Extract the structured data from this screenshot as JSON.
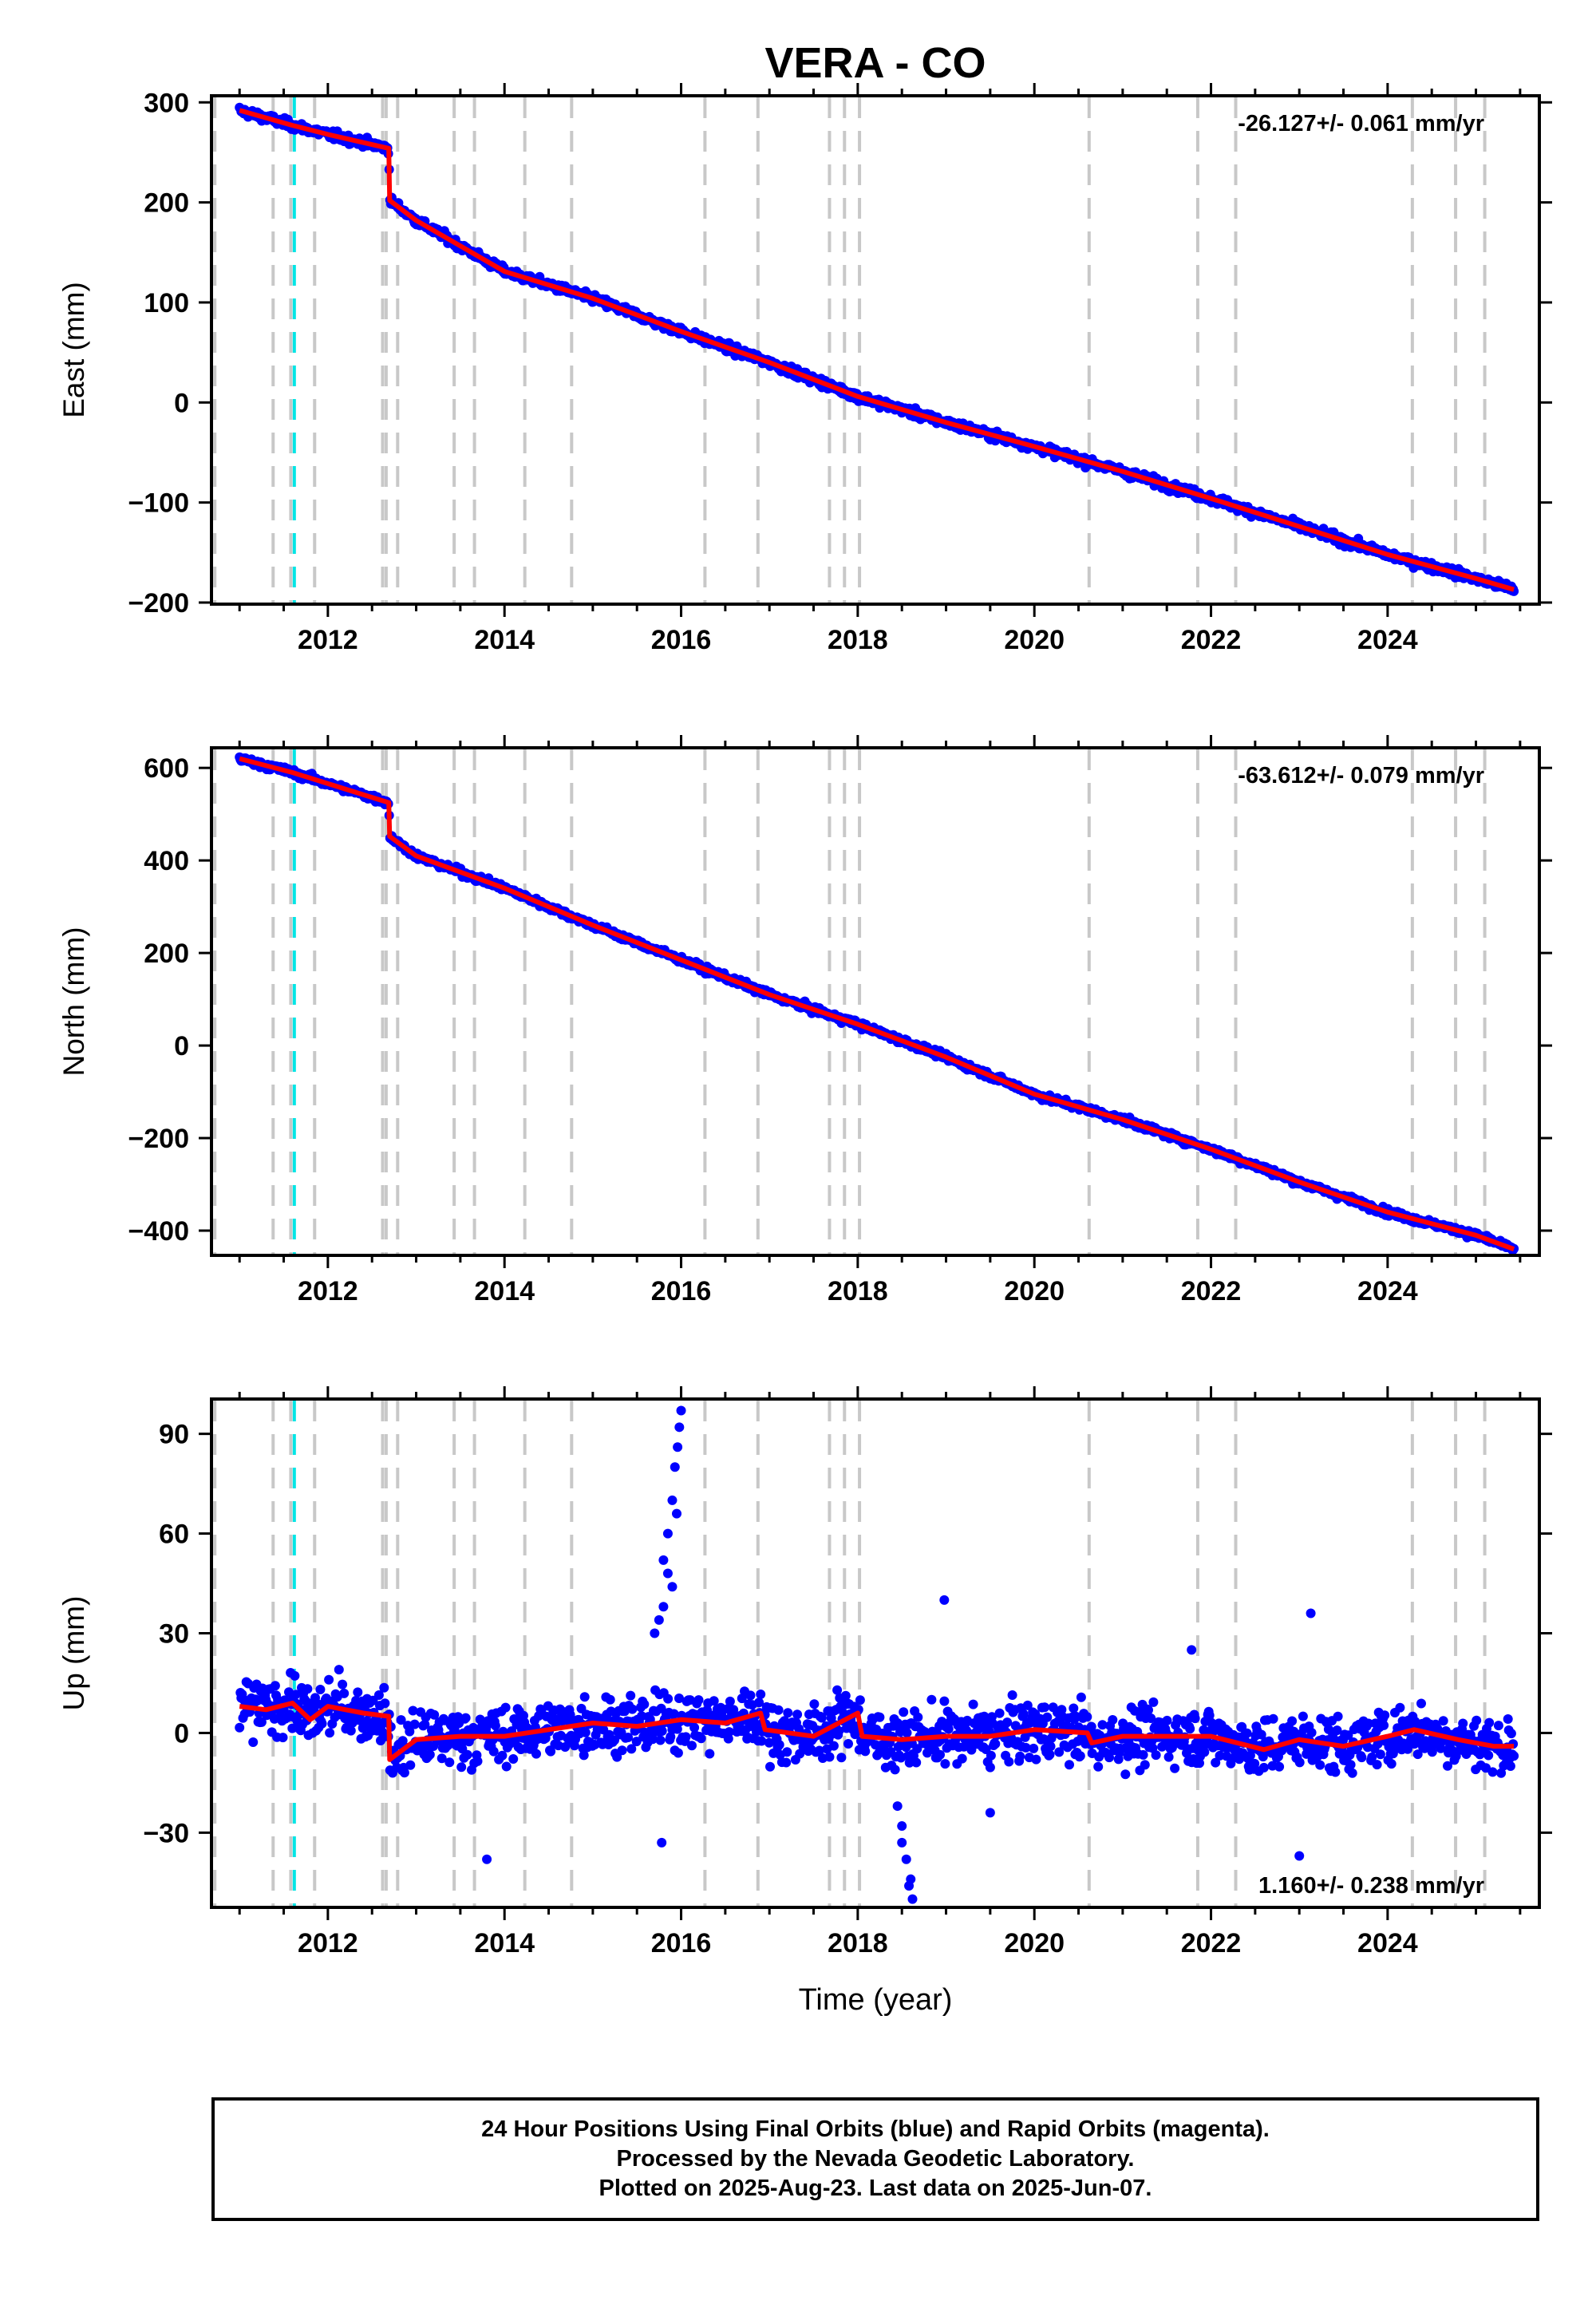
{
  "title": "VERA - CO",
  "colors": {
    "data_points": "#0000ff",
    "model_line": "#ff0000",
    "event_lines": "#c8c8c8",
    "antenna_change": "#00e5e5",
    "frame": "#000000"
  },
  "x_axis": {
    "label": "Time (year)",
    "range": [
      2010.7,
      2025.7
    ],
    "ticks": [
      2012,
      2014,
      2016,
      2018,
      2020,
      2022,
      2024
    ]
  },
  "event_years": [
    2010.72,
    2011.38,
    2011.58,
    2011.85,
    2012.62,
    2012.66,
    2012.79,
    2013.43,
    2013.66,
    2014.23,
    2014.76,
    2016.27,
    2016.87,
    2017.68,
    2017.85,
    2018.02,
    2020.62,
    2021.85,
    2022.28,
    2024.28,
    2024.77,
    2025.1
  ],
  "antenna_change_years": [
    2011.62
  ],
  "footer": {
    "line1": "24 Hour Positions Using Final Orbits (blue) and Rapid Orbits (magenta).",
    "line2": "Processed by the Nevada Geodetic Laboratory.",
    "line3": "Plotted on 2025-Aug-23. Last data on 2025-Jun-07."
  },
  "chart_data": [
    {
      "type": "scatter",
      "name": "east",
      "ylabel": "East (mm)",
      "ylim": [
        -200,
        305
      ],
      "yticks": [
        -200,
        -100,
        0,
        100,
        200,
        300
      ],
      "rate_label": "-26.127+/- 0.061 mm/yr",
      "rate_position": "top-right",
      "noise": 3,
      "model": [
        [
          2011.0,
          292
        ],
        [
          2011.6,
          277
        ],
        [
          2012.0,
          268
        ],
        [
          2012.69,
          254
        ],
        [
          2012.7,
          202
        ],
        [
          2013.0,
          182
        ],
        [
          2014.0,
          131
        ],
        [
          2015.0,
          104
        ],
        [
          2016.0,
          71
        ],
        [
          2017.0,
          40
        ],
        [
          2018.0,
          6
        ],
        [
          2019.0,
          -20
        ],
        [
          2020.0,
          -44
        ],
        [
          2021.0,
          -69
        ],
        [
          2022.0,
          -96
        ],
        [
          2023.0,
          -124
        ],
        [
          2024.0,
          -152
        ],
        [
          2025.0,
          -176
        ],
        [
          2025.43,
          -187
        ]
      ]
    },
    {
      "type": "scatter",
      "name": "north",
      "ylabel": "North (mm)",
      "ylim": [
        -450,
        640
      ],
      "yticks": [
        -400,
        -200,
        0,
        200,
        400,
        600
      ],
      "rate_label": "-63.612+/- 0.079 mm/yr",
      "rate_position": "top-right",
      "noise": 5,
      "model": [
        [
          2011.0,
          620
        ],
        [
          2011.6,
          590
        ],
        [
          2012.0,
          566
        ],
        [
          2012.69,
          525
        ],
        [
          2012.7,
          452
        ],
        [
          2013.0,
          410
        ],
        [
          2014.0,
          340
        ],
        [
          2015.0,
          260
        ],
        [
          2016.0,
          185
        ],
        [
          2017.0,
          110
        ],
        [
          2018.0,
          46
        ],
        [
          2019.0,
          -25
        ],
        [
          2020.0,
          -105
        ],
        [
          2021.0,
          -160
        ],
        [
          2022.0,
          -224
        ],
        [
          2023.0,
          -295
        ],
        [
          2024.0,
          -360
        ],
        [
          2025.0,
          -410
        ],
        [
          2025.43,
          -440
        ]
      ]
    },
    {
      "type": "scatter",
      "name": "up",
      "ylabel": "Up (mm)",
      "ylim": [
        -52,
        100
      ],
      "yticks": [
        -30,
        0,
        30,
        60,
        90
      ],
      "rate_label": "1.160+/- 0.238 mm/yr",
      "rate_position": "bottom-right",
      "noise": 6,
      "model": [
        [
          2011.0,
          8
        ],
        [
          2011.3,
          7
        ],
        [
          2011.6,
          9
        ],
        [
          2011.8,
          4
        ],
        [
          2012.0,
          8
        ],
        [
          2012.4,
          6
        ],
        [
          2012.69,
          5
        ],
        [
          2012.7,
          -8
        ],
        [
          2013.0,
          -2
        ],
        [
          2013.5,
          -1
        ],
        [
          2014.0,
          -1
        ],
        [
          2014.5,
          1
        ],
        [
          2015.0,
          3
        ],
        [
          2015.5,
          2
        ],
        [
          2016.0,
          4
        ],
        [
          2016.5,
          3
        ],
        [
          2016.9,
          6
        ],
        [
          2016.95,
          1
        ],
        [
          2017.5,
          -1
        ],
        [
          2018.0,
          6
        ],
        [
          2018.05,
          -1
        ],
        [
          2018.5,
          -2
        ],
        [
          2019.0,
          -1
        ],
        [
          2019.5,
          -1
        ],
        [
          2020.0,
          1
        ],
        [
          2020.6,
          0
        ],
        [
          2020.65,
          -3
        ],
        [
          2021.0,
          -1
        ],
        [
          2021.5,
          -1
        ],
        [
          2022.0,
          -1
        ],
        [
          2022.6,
          -5
        ],
        [
          2023.0,
          -2
        ],
        [
          2023.5,
          -4
        ],
        [
          2024.0,
          -1
        ],
        [
          2024.3,
          1
        ],
        [
          2024.8,
          -2
        ],
        [
          2025.2,
          -4
        ],
        [
          2025.43,
          -4
        ]
      ],
      "outliers": [
        [
          2015.8,
          52
        ],
        [
          2015.85,
          60
        ],
        [
          2015.9,
          70
        ],
        [
          2015.93,
          80
        ],
        [
          2015.96,
          86
        ],
        [
          2015.98,
          92
        ],
        [
          2016.0,
          97
        ],
        [
          2015.95,
          66
        ],
        [
          2015.9,
          44
        ],
        [
          2015.8,
          38
        ],
        [
          2015.7,
          30
        ],
        [
          2015.75,
          34
        ],
        [
          2015.85,
          48
        ],
        [
          2018.5,
          -33
        ],
        [
          2018.55,
          -38
        ],
        [
          2018.6,
          -44
        ],
        [
          2018.62,
          -50
        ],
        [
          2018.58,
          -46
        ],
        [
          2018.5,
          -28
        ],
        [
          2018.45,
          -22
        ],
        [
          2018.98,
          40
        ],
        [
          2023.13,
          36
        ],
        [
          2023.0,
          -37
        ],
        [
          2013.8,
          -38
        ],
        [
          2015.78,
          -33
        ],
        [
          2021.78,
          25
        ],
        [
          2019.5,
          -24
        ]
      ]
    }
  ]
}
